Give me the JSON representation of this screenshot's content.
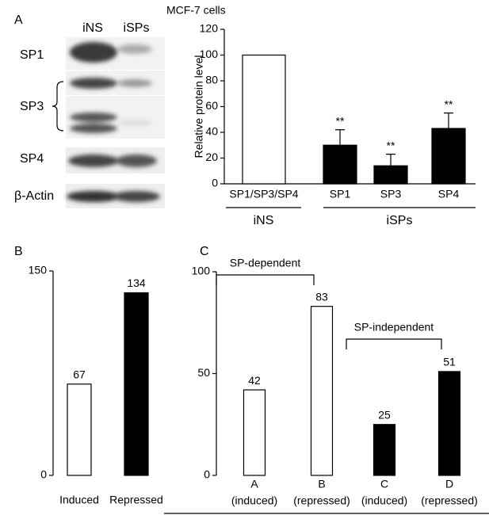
{
  "chart_data": [
    {
      "type": "bar",
      "panel": "A",
      "title": "MCF-7 cells",
      "ylabel": "Relative protein level",
      "categories": [
        "SP1/SP3/SP4",
        "SP1",
        "SP3",
        "SP4"
      ],
      "values": [
        100,
        30,
        14,
        43
      ],
      "errors": [
        null,
        12,
        9,
        12
      ],
      "annotations": [
        null,
        "**",
        "**",
        "**"
      ],
      "colors": [
        "#ffffff",
        "#000000",
        "#000000",
        "#000000"
      ],
      "groups": [
        "iNS",
        "iSPs"
      ],
      "ylim": [
        0,
        120
      ],
      "yticks": [
        0,
        20,
        40,
        60,
        80,
        100,
        120
      ]
    },
    {
      "type": "bar",
      "panel": "B",
      "categories": [
        "Induced",
        "Repressed"
      ],
      "values": [
        67,
        134
      ],
      "colors": [
        "#ffffff",
        "#000000"
      ],
      "ylim": [
        0,
        150
      ],
      "yticks": [
        0,
        150
      ]
    },
    {
      "type": "bar",
      "panel": "C",
      "categories": [
        "A",
        "B",
        "C",
        "D"
      ],
      "sublabels": [
        "(induced)",
        "(repressed)",
        "(induced)",
        "(repressed)"
      ],
      "values": [
        42,
        83,
        25,
        51
      ],
      "colors": [
        "#ffffff",
        "#ffffff",
        "#000000",
        "#000000"
      ],
      "brackets": [
        "SP-dependent",
        "SP-independent"
      ],
      "ylim": [
        0,
        100
      ],
      "yticks": [
        0,
        50,
        100
      ]
    }
  ],
  "blot": {
    "columns": [
      "iNS",
      "iSPs"
    ],
    "rows": [
      "SP1",
      "SP3",
      "SP4",
      "β-Actin"
    ]
  }
}
